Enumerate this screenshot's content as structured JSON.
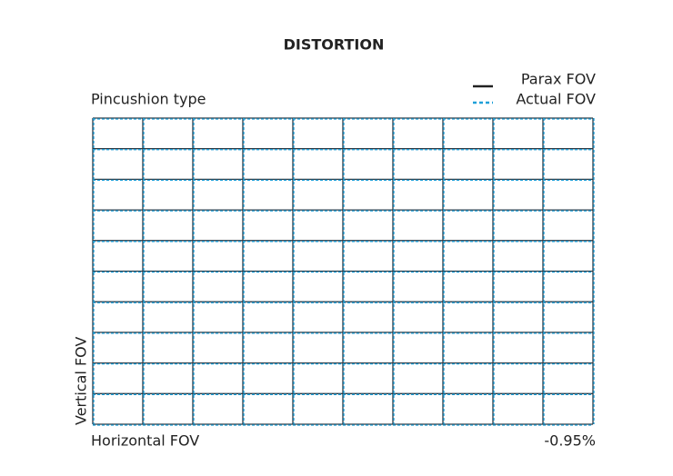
{
  "title": "DISTORTION",
  "subtitle": "Pincushion type",
  "legend": [
    {
      "label": "Parax FOV"
    },
    {
      "label": "Actual FOV"
    }
  ],
  "y_axis_label": "Vertical FOV",
  "x_axis_label": "Horizontal FOV",
  "distortion_label": "-0.95%"
}
